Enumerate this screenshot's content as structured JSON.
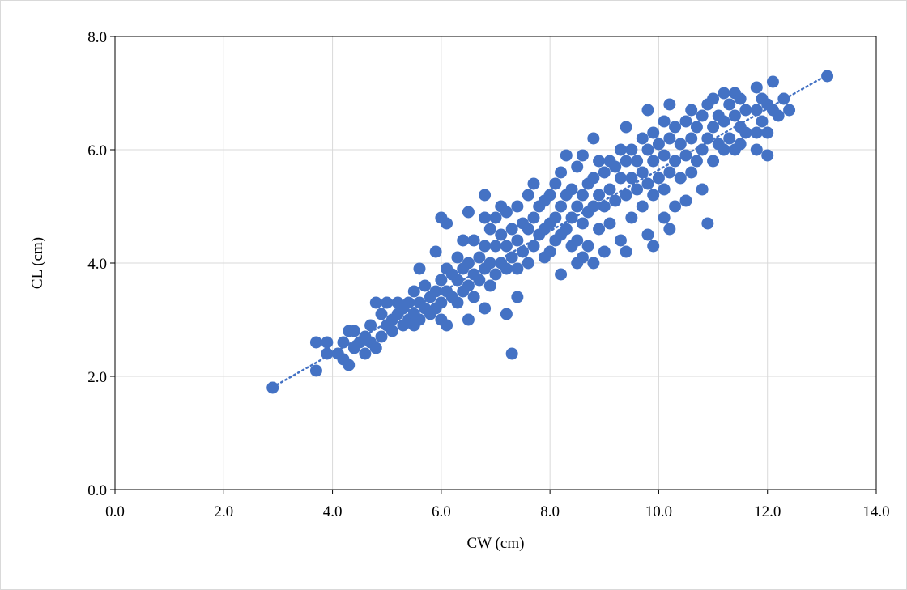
{
  "chart_data": {
    "type": "scatter",
    "title": "",
    "xlabel": "CW (cm)",
    "ylabel": "CL (cm)",
    "xlim": [
      0,
      14
    ],
    "ylim": [
      0,
      8
    ],
    "x_ticks": [
      "0.0",
      "2.0",
      "4.0",
      "6.0",
      "8.0",
      "10.0",
      "12.0",
      "14.0"
    ],
    "y_ticks": [
      "0.0",
      "2.0",
      "4.0",
      "6.0",
      "8.0"
    ],
    "grid": true,
    "legend": "none",
    "series": [
      {
        "color": "#4472C4",
        "trendline": {
          "type": "linear",
          "style": "dotted",
          "x": [
            2.9,
            13.1
          ],
          "y": [
            1.81,
            7.32
          ]
        },
        "points": [
          [
            2.9,
            1.8
          ],
          [
            3.7,
            2.6
          ],
          [
            3.7,
            2.1
          ],
          [
            3.9,
            2.6
          ],
          [
            3.9,
            2.4
          ],
          [
            4.1,
            2.4
          ],
          [
            4.2,
            2.3
          ],
          [
            4.2,
            2.6
          ],
          [
            4.3,
            2.8
          ],
          [
            4.3,
            2.2
          ],
          [
            4.4,
            2.8
          ],
          [
            4.4,
            2.5
          ],
          [
            4.5,
            2.6
          ],
          [
            4.6,
            2.7
          ],
          [
            4.6,
            2.4
          ],
          [
            4.7,
            2.6
          ],
          [
            4.7,
            2.9
          ],
          [
            4.8,
            2.5
          ],
          [
            4.8,
            3.3
          ],
          [
            4.9,
            3.1
          ],
          [
            4.9,
            2.7
          ],
          [
            5.0,
            3.3
          ],
          [
            5.0,
            2.9
          ],
          [
            5.1,
            3.0
          ],
          [
            5.1,
            2.8
          ],
          [
            5.2,
            3.3
          ],
          [
            5.2,
            3.1
          ],
          [
            5.3,
            2.9
          ],
          [
            5.3,
            3.2
          ],
          [
            5.4,
            3.3
          ],
          [
            5.4,
            3.0
          ],
          [
            5.5,
            3.5
          ],
          [
            5.5,
            3.1
          ],
          [
            5.5,
            2.9
          ],
          [
            5.6,
            3.9
          ],
          [
            5.6,
            3.3
          ],
          [
            5.6,
            3.0
          ],
          [
            5.7,
            3.6
          ],
          [
            5.7,
            3.2
          ],
          [
            5.8,
            3.4
          ],
          [
            5.8,
            3.1
          ],
          [
            5.9,
            4.2
          ],
          [
            5.9,
            3.5
          ],
          [
            5.9,
            3.2
          ],
          [
            6.0,
            4.8
          ],
          [
            6.0,
            3.7
          ],
          [
            6.0,
            3.3
          ],
          [
            6.0,
            3.0
          ],
          [
            6.1,
            4.7
          ],
          [
            6.1,
            3.9
          ],
          [
            6.1,
            3.5
          ],
          [
            6.1,
            2.9
          ],
          [
            6.2,
            3.8
          ],
          [
            6.2,
            3.4
          ],
          [
            6.3,
            4.1
          ],
          [
            6.3,
            3.7
          ],
          [
            6.3,
            3.3
          ],
          [
            6.4,
            4.4
          ],
          [
            6.4,
            3.9
          ],
          [
            6.4,
            3.5
          ],
          [
            6.5,
            4.9
          ],
          [
            6.5,
            4.0
          ],
          [
            6.5,
            3.6
          ],
          [
            6.5,
            3.0
          ],
          [
            6.6,
            4.4
          ],
          [
            6.6,
            3.8
          ],
          [
            6.6,
            3.4
          ],
          [
            6.7,
            4.1
          ],
          [
            6.7,
            3.7
          ],
          [
            6.8,
            5.2
          ],
          [
            6.8,
            4.8
          ],
          [
            6.8,
            4.3
          ],
          [
            6.8,
            3.9
          ],
          [
            6.8,
            3.2
          ],
          [
            6.9,
            4.6
          ],
          [
            6.9,
            4.0
          ],
          [
            6.9,
            3.6
          ],
          [
            7.0,
            4.8
          ],
          [
            7.0,
            4.3
          ],
          [
            7.0,
            3.8
          ],
          [
            7.1,
            5.0
          ],
          [
            7.1,
            4.5
          ],
          [
            7.1,
            4.0
          ],
          [
            7.2,
            4.9
          ],
          [
            7.2,
            4.3
          ],
          [
            7.2,
            3.9
          ],
          [
            7.2,
            3.1
          ],
          [
            7.3,
            4.6
          ],
          [
            7.3,
            4.1
          ],
          [
            7.3,
            2.4
          ],
          [
            7.4,
            5.0
          ],
          [
            7.4,
            4.4
          ],
          [
            7.4,
            3.9
          ],
          [
            7.4,
            3.4
          ],
          [
            7.5,
            4.7
          ],
          [
            7.5,
            4.2
          ],
          [
            7.6,
            5.2
          ],
          [
            7.6,
            4.6
          ],
          [
            7.6,
            4.0
          ],
          [
            7.7,
            5.4
          ],
          [
            7.7,
            4.8
          ],
          [
            7.7,
            4.3
          ],
          [
            7.8,
            5.0
          ],
          [
            7.8,
            4.5
          ],
          [
            7.9,
            5.1
          ],
          [
            7.9,
            4.6
          ],
          [
            7.9,
            4.1
          ],
          [
            8.0,
            5.2
          ],
          [
            8.0,
            4.7
          ],
          [
            8.0,
            4.2
          ],
          [
            8.1,
            5.4
          ],
          [
            8.1,
            4.8
          ],
          [
            8.1,
            4.4
          ],
          [
            8.2,
            5.6
          ],
          [
            8.2,
            5.0
          ],
          [
            8.2,
            4.5
          ],
          [
            8.2,
            3.8
          ],
          [
            8.3,
            5.9
          ],
          [
            8.3,
            5.2
          ],
          [
            8.3,
            4.6
          ],
          [
            8.4,
            5.3
          ],
          [
            8.4,
            4.8
          ],
          [
            8.4,
            4.3
          ],
          [
            8.5,
            5.7
          ],
          [
            8.5,
            5.0
          ],
          [
            8.5,
            4.4
          ],
          [
            8.5,
            4.0
          ],
          [
            8.6,
            5.9
          ],
          [
            8.6,
            5.2
          ],
          [
            8.6,
            4.7
          ],
          [
            8.6,
            4.1
          ],
          [
            8.7,
            5.4
          ],
          [
            8.7,
            4.9
          ],
          [
            8.7,
            4.3
          ],
          [
            8.8,
            6.2
          ],
          [
            8.8,
            5.5
          ],
          [
            8.8,
            5.0
          ],
          [
            8.8,
            4.0
          ],
          [
            8.9,
            5.8
          ],
          [
            8.9,
            5.2
          ],
          [
            8.9,
            4.6
          ],
          [
            9.0,
            5.6
          ],
          [
            9.0,
            5.0
          ],
          [
            9.0,
            4.2
          ],
          [
            9.1,
            5.8
          ],
          [
            9.1,
            5.3
          ],
          [
            9.1,
            4.7
          ],
          [
            9.2,
            5.7
          ],
          [
            9.2,
            5.1
          ],
          [
            9.3,
            6.0
          ],
          [
            9.3,
            5.5
          ],
          [
            9.3,
            4.4
          ],
          [
            9.4,
            6.4
          ],
          [
            9.4,
            5.8
          ],
          [
            9.4,
            5.2
          ],
          [
            9.4,
            4.2
          ],
          [
            9.5,
            6.0
          ],
          [
            9.5,
            5.5
          ],
          [
            9.5,
            4.8
          ],
          [
            9.6,
            5.8
          ],
          [
            9.6,
            5.3
          ],
          [
            9.7,
            6.2
          ],
          [
            9.7,
            5.6
          ],
          [
            9.7,
            5.0
          ],
          [
            9.8,
            6.7
          ],
          [
            9.8,
            6.0
          ],
          [
            9.8,
            5.4
          ],
          [
            9.8,
            4.5
          ],
          [
            9.9,
            6.3
          ],
          [
            9.9,
            5.8
          ],
          [
            9.9,
            5.2
          ],
          [
            9.9,
            4.3
          ],
          [
            10.0,
            6.1
          ],
          [
            10.0,
            5.5
          ],
          [
            10.1,
            6.5
          ],
          [
            10.1,
            5.9
          ],
          [
            10.1,
            5.3
          ],
          [
            10.1,
            4.8
          ],
          [
            10.2,
            6.8
          ],
          [
            10.2,
            6.2
          ],
          [
            10.2,
            5.6
          ],
          [
            10.2,
            4.6
          ],
          [
            10.3,
            6.4
          ],
          [
            10.3,
            5.8
          ],
          [
            10.3,
            5.0
          ],
          [
            10.4,
            6.1
          ],
          [
            10.4,
            5.5
          ],
          [
            10.5,
            6.5
          ],
          [
            10.5,
            5.9
          ],
          [
            10.5,
            5.1
          ],
          [
            10.6,
            6.7
          ],
          [
            10.6,
            6.2
          ],
          [
            10.6,
            5.6
          ],
          [
            10.7,
            6.4
          ],
          [
            10.7,
            5.8
          ],
          [
            10.8,
            6.6
          ],
          [
            10.8,
            6.0
          ],
          [
            10.8,
            5.3
          ],
          [
            10.9,
            6.8
          ],
          [
            10.9,
            6.2
          ],
          [
            10.9,
            4.7
          ],
          [
            11.0,
            6.9
          ],
          [
            11.0,
            6.4
          ],
          [
            11.0,
            5.8
          ],
          [
            11.1,
            6.6
          ],
          [
            11.1,
            6.1
          ],
          [
            11.2,
            7.0
          ],
          [
            11.2,
            6.5
          ],
          [
            11.2,
            6.0
          ],
          [
            11.3,
            6.8
          ],
          [
            11.3,
            6.2
          ],
          [
            11.4,
            7.0
          ],
          [
            11.4,
            6.6
          ],
          [
            11.4,
            6.0
          ],
          [
            11.5,
            6.9
          ],
          [
            11.5,
            6.4
          ],
          [
            11.5,
            6.1
          ],
          [
            11.6,
            6.7
          ],
          [
            11.6,
            6.3
          ],
          [
            11.8,
            7.1
          ],
          [
            11.8,
            6.7
          ],
          [
            11.8,
            6.3
          ],
          [
            11.8,
            6.0
          ],
          [
            11.9,
            6.9
          ],
          [
            11.9,
            6.5
          ],
          [
            12.0,
            6.8
          ],
          [
            12.0,
            6.3
          ],
          [
            12.0,
            5.9
          ],
          [
            12.1,
            7.2
          ],
          [
            12.1,
            6.7
          ],
          [
            12.2,
            6.6
          ],
          [
            12.3,
            6.9
          ],
          [
            12.4,
            6.7
          ],
          [
            13.1,
            7.3
          ]
        ]
      }
    ]
  }
}
